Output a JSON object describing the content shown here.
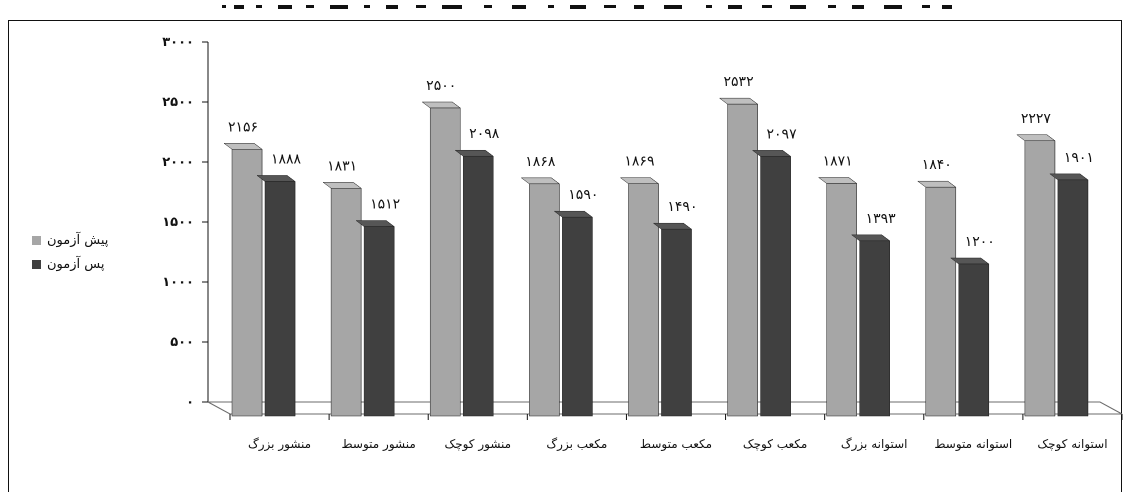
{
  "chart_data": {
    "type": "bar",
    "title": "",
    "xlabel": "",
    "ylabel": "",
    "ylim": [
      0,
      3000
    ],
    "yticks": [
      "۰",
      "۵۰۰",
      "۱۰۰۰",
      "۱۵۰۰",
      "۲۰۰۰",
      "۲۵۰۰",
      "۳۰۰۰"
    ],
    "ytick_values": [
      0,
      500,
      1000,
      1500,
      2000,
      2500,
      3000
    ],
    "grid": false,
    "legend_position": "left",
    "categories": [
      "منشور بزرگ",
      "منشور متوسط",
      "منشور کوچک",
      "مکعب بزرگ",
      "مکعب متوسط",
      "مکعب کوچک",
      "استوانه بزرگ",
      "استوانه متوسط",
      "استوانه کوچک"
    ],
    "series": [
      {
        "name": "پیش آزمون",
        "color": "#a6a6a6",
        "values": [
          2156,
          1831,
          2500,
          1868,
          1869,
          2532,
          1871,
          1840,
          2227
        ],
        "labels": [
          "۲۱۵۶",
          "۱۸۳۱",
          "۲۵۰۰",
          "۱۸۶۸",
          "۱۸۶۹",
          "۲۵۳۲",
          "۱۸۷۱",
          "۱۸۴۰",
          "۲۲۲۷"
        ]
      },
      {
        "name": "پس آزمون",
        "color": "#404040",
        "values": [
          1888,
          1512,
          2098,
          1590,
          1490,
          2097,
          1393,
          1200,
          1901
        ],
        "labels": [
          "۱۸۸۸",
          "۱۵۱۲",
          "۲۰۹۸",
          "۱۵۹۰",
          "۱۴۹۰",
          "۲۰۹۷",
          "۱۳۹۳",
          "۱۲۰۰",
          "۱۹۰۱"
        ]
      }
    ]
  }
}
